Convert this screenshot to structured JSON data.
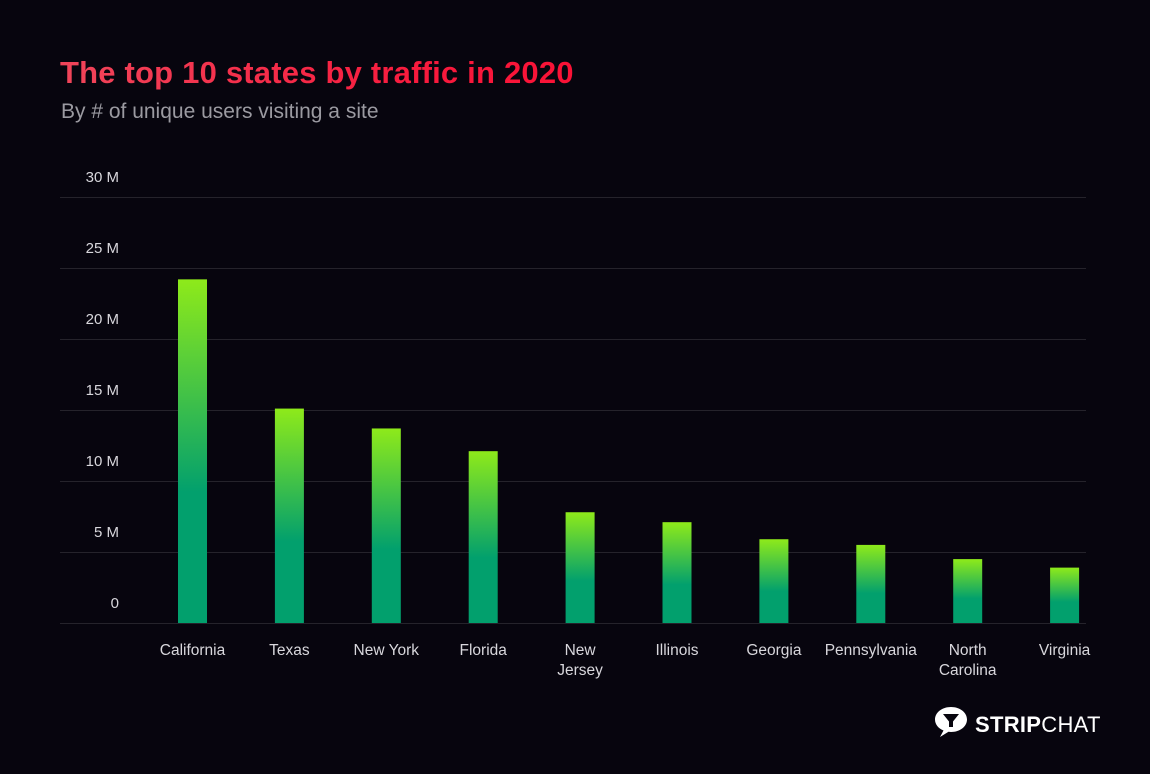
{
  "header": {
    "title": "The top 10 states by traffic in 2020",
    "subtitle": "By # of unique users visiting a site"
  },
  "brand": {
    "icon": "speech-bubble-glass-icon",
    "name_bold": "STRIP",
    "name_light": "CHAT",
    "color": "#ffffff"
  },
  "colors": {
    "title_start": "#f0455a",
    "title_end": "#fa1236",
    "bar_top": "#8eea1a",
    "bar_bottom": "#02a06d",
    "background": "#07050e"
  },
  "chart_data": {
    "type": "bar",
    "title": "The top 10 states by traffic in 2020",
    "subtitle": "By # of unique users visiting a site",
    "xlabel": "",
    "ylabel": "",
    "categories": [
      "California",
      "Texas",
      "New York",
      "Florida",
      "New Jersey",
      "Illinois",
      "Georgia",
      "Pennsylvania",
      "North Carolina",
      "Virginia"
    ],
    "category_label_lines": [
      [
        "California"
      ],
      [
        "Texas"
      ],
      [
        "New York"
      ],
      [
        "Florida"
      ],
      [
        "New",
        "Jersey"
      ],
      [
        "Illinois"
      ],
      [
        "Georgia"
      ],
      [
        "Pennsylvania"
      ],
      [
        "North",
        "Carolina"
      ],
      [
        "Virginia"
      ]
    ],
    "values": [
      24.2,
      15.1,
      13.7,
      12.1,
      7.8,
      7.1,
      5.9,
      5.5,
      4.5,
      3.9
    ],
    "units": "millions of unique users",
    "ylim": [
      0,
      30
    ],
    "yticks": [
      0,
      5,
      10,
      15,
      20,
      25,
      30
    ],
    "ytick_labels": [
      "0",
      "5 M",
      "10 M",
      "15 M",
      "20 M",
      "25 M",
      "30 M"
    ],
    "grid": true,
    "legend": "none"
  }
}
